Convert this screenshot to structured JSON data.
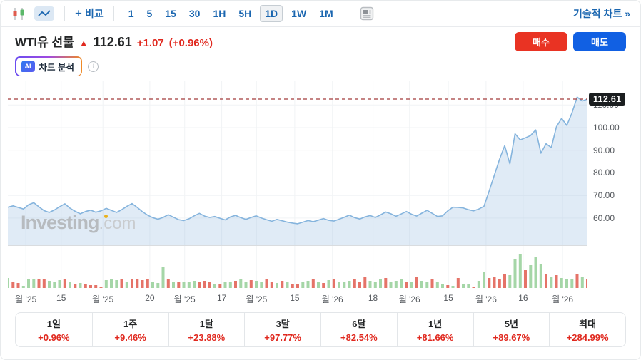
{
  "toolbar": {
    "compare_label": "비교",
    "timeframes": [
      "1",
      "5",
      "15",
      "30",
      "1H",
      "5H",
      "1D",
      "1W",
      "1M"
    ],
    "active_timeframe": "1D",
    "technical_chart_link": "기술적 차트 »"
  },
  "header": {
    "title": "WTI유 선물",
    "up_arrow": "▲",
    "price": "112.61",
    "change": "+1.07",
    "change_percent": "(+0.96%)",
    "buy_label": "매수",
    "sell_label": "매도",
    "ai_badge": "AI",
    "ai_button_label": "차트 분석",
    "info_icon": "i"
  },
  "watermark": {
    "brand": "Investing",
    "suffix": ".com"
  },
  "colors": {
    "accent_blue": "#1a66b0",
    "text_dark": "#232526",
    "change_red": "#e0281e",
    "buy_red": "#e93323",
    "sell_blue": "#1160e3",
    "line": "#85b4dd",
    "area_fill": "rgba(144,184,222,0.28)",
    "volume_up": "#a5d6a7",
    "volume_down": "#e57368",
    "dashed_line": "#a23b3b",
    "tag_bg": "#1b1e20",
    "axis_text": "#55595e",
    "grid": "#f1f3f5"
  },
  "chart_data": {
    "type": "area",
    "title": "WTI유 선물 1D",
    "legend": [],
    "grid": true,
    "last_price": 112.61,
    "last_price_label": "112.61",
    "price_domain": [
      48,
      120.5
    ],
    "y_ticks": [
      {
        "label": "110.00",
        "value": 110
      },
      {
        "label": "100.00",
        "value": 100
      },
      {
        "label": "90.00",
        "value": 90
      },
      {
        "label": "80.00",
        "value": 80
      },
      {
        "label": "70.00",
        "value": 70
      },
      {
        "label": "60.00",
        "value": 60
      }
    ],
    "x_ticks": [
      {
        "label": "월 '25",
        "pos": 0.031
      },
      {
        "label": "15",
        "pos": 0.092
      },
      {
        "label": "월 '25",
        "pos": 0.164
      },
      {
        "label": "20",
        "pos": 0.245
      },
      {
        "label": "월 '25",
        "pos": 0.305
      },
      {
        "label": "17",
        "pos": 0.369
      },
      {
        "label": "월 '25",
        "pos": 0.429
      },
      {
        "label": "15",
        "pos": 0.495
      },
      {
        "label": "월 '26",
        "pos": 0.56
      },
      {
        "label": "18",
        "pos": 0.63
      },
      {
        "label": "월 '26",
        "pos": 0.693
      },
      {
        "label": "15",
        "pos": 0.76
      },
      {
        "label": "월 '26",
        "pos": 0.825
      },
      {
        "label": "16",
        "pos": 0.889
      },
      {
        "label": "월 '26",
        "pos": 0.957
      }
    ],
    "prices": [
      64.8,
      65.4,
      64.7,
      64.0,
      65.9,
      66.8,
      65.0,
      63.3,
      62.5,
      63.6,
      65.0,
      66.3,
      64.4,
      63.0,
      61.9,
      62.9,
      63.5,
      62.6,
      63.2,
      64.3,
      63.4,
      62.5,
      63.7,
      65.2,
      66.4,
      64.7,
      62.8,
      61.3,
      60.2,
      59.5,
      60.3,
      61.5,
      60.4,
      59.3,
      58.9,
      59.7,
      61.0,
      62.1,
      60.9,
      60.3,
      60.7,
      59.9,
      59.2,
      60.5,
      61.2,
      60.2,
      59.4,
      60.3,
      61.0,
      60.0,
      59.3,
      58.6,
      59.4,
      58.8,
      58.2,
      57.8,
      57.5,
      58.2,
      58.9,
      58.4,
      59.1,
      59.8,
      59.0,
      58.7,
      59.5,
      60.4,
      61.3,
      60.2,
      59.6,
      60.5,
      61.1,
      60.3,
      61.4,
      62.7,
      61.9,
      60.8,
      61.8,
      62.9,
      61.7,
      60.9,
      62.2,
      63.4,
      62.1,
      60.7,
      61.0,
      63.2,
      64.8,
      64.7,
      64.5,
      63.7,
      63.2,
      64.0,
      65.2,
      72.0,
      79.0,
      86.0,
      92.0,
      84.0,
      97.3,
      94.6,
      95.5,
      96.5,
      99.0,
      88.7,
      92.9,
      91.2,
      100.4,
      104.1,
      101.0,
      106.5,
      113.5,
      111.8,
      112.61
    ],
    "volumes": [
      14,
      9,
      7,
      3,
      12,
      13,
      12,
      13,
      10,
      9,
      11,
      12,
      8,
      6,
      7,
      5,
      4,
      4,
      2,
      11,
      12,
      11,
      12,
      9,
      12,
      12,
      11,
      12,
      9,
      7,
      30,
      13,
      9,
      8,
      8,
      9,
      10,
      9,
      10,
      9,
      6,
      5,
      9,
      8,
      10,
      12,
      9,
      11,
      10,
      8,
      12,
      9,
      7,
      10,
      8,
      6,
      5,
      8,
      10,
      12,
      9,
      7,
      11,
      13,
      9,
      8,
      10,
      12,
      9,
      16,
      10,
      8,
      12,
      14,
      9,
      10,
      13,
      9,
      8,
      15,
      10,
      9,
      12,
      8,
      6,
      4,
      3,
      14,
      6,
      5,
      2,
      10,
      22,
      14,
      16,
      13,
      20,
      18,
      40,
      48,
      25,
      32,
      44,
      34,
      20,
      15,
      18,
      14,
      12,
      13,
      20,
      16,
      13
    ],
    "volume_dirs": [
      1,
      -1,
      -1,
      1,
      1,
      1,
      -1,
      -1,
      1,
      1,
      1,
      -1,
      1,
      -1,
      1,
      -1,
      -1,
      -1,
      -1,
      1,
      1,
      1,
      -1,
      1,
      -1,
      -1,
      -1,
      -1,
      1,
      1,
      1,
      -1,
      1,
      -1,
      1,
      1,
      1,
      -1,
      -1,
      -1,
      1,
      -1,
      1,
      1,
      -1,
      1,
      1,
      -1,
      1,
      1,
      -1,
      -1,
      1,
      -1,
      1,
      -1,
      -1,
      1,
      1,
      -1,
      1,
      -1,
      1,
      -1,
      1,
      1,
      1,
      -1,
      -1,
      -1,
      1,
      1,
      1,
      -1,
      1,
      1,
      1,
      -1,
      1,
      -1,
      1,
      1,
      -1,
      1,
      1,
      -1,
      1,
      -1,
      1,
      1,
      -1,
      1,
      1,
      -1,
      -1,
      -1,
      -1,
      1,
      1,
      1,
      -1,
      1,
      1,
      1,
      -1,
      1,
      -1,
      1,
      1,
      1,
      -1,
      1,
      -1
    ]
  },
  "performance": [
    {
      "label": "1일",
      "value": "+0.96%"
    },
    {
      "label": "1주",
      "value": "+9.46%"
    },
    {
      "label": "1달",
      "value": "+23.88%"
    },
    {
      "label": "3달",
      "value": "+97.77%"
    },
    {
      "label": "6달",
      "value": "+82.54%"
    },
    {
      "label": "1년",
      "value": "+81.66%"
    },
    {
      "label": "5년",
      "value": "+89.67%"
    },
    {
      "label": "최대",
      "value": "+284.99%"
    }
  ]
}
